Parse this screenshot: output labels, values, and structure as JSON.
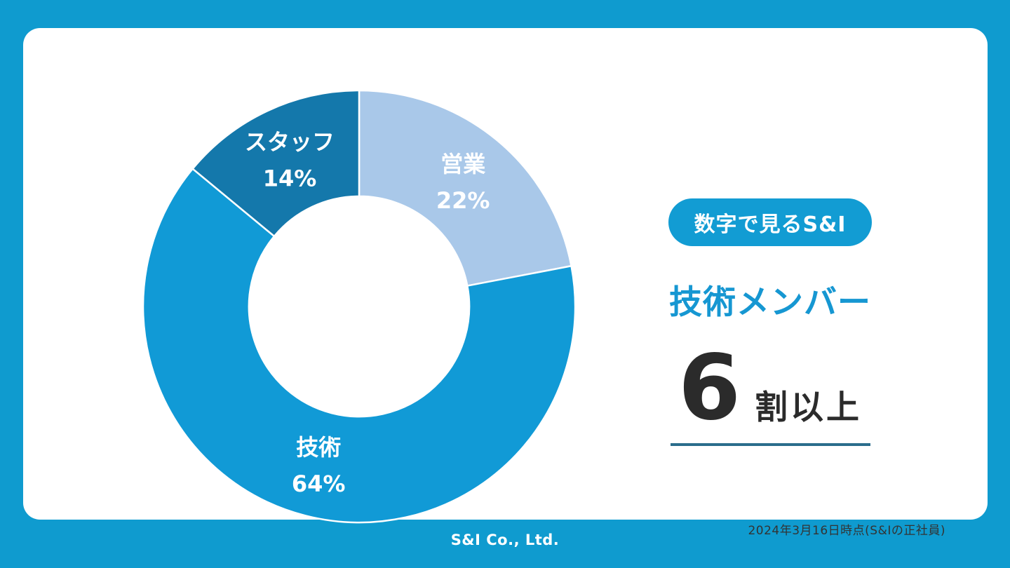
{
  "slide": {
    "frame_color": "#0F9BCF",
    "card_color": "#FFFFFF"
  },
  "chart_data": {
    "type": "pie",
    "subtype": "donut",
    "title": "",
    "unit": "%",
    "start_angle_deg": 0,
    "direction": "clockwise",
    "inner_radius_ratio": 0.51,
    "label_color": "#FFFFFF",
    "slice_border_color": "#FFFFFF",
    "segments": [
      {
        "label": "営業",
        "value": 22,
        "display": "22%",
        "color": "#A9C8E9"
      },
      {
        "label": "技術",
        "value": 64,
        "display": "64%",
        "color": "#119AD6"
      },
      {
        "label": "スタッフ",
        "value": 14,
        "display": "14%",
        "color": "#1478AB"
      }
    ]
  },
  "panel": {
    "badge_label": "数字で見るS&I",
    "badge_bg": "#129CD3",
    "heading": "技術メンバー",
    "heading_color": "#1697D2",
    "stat_value": "6",
    "stat_suffix": "割以上",
    "stat_color": "#2B2B2B",
    "underline_color": "#2A6D8C",
    "footnote": "2024年3月16日時点(S&Iの正社員)"
  },
  "footer": {
    "company": "S&I Co., Ltd."
  }
}
